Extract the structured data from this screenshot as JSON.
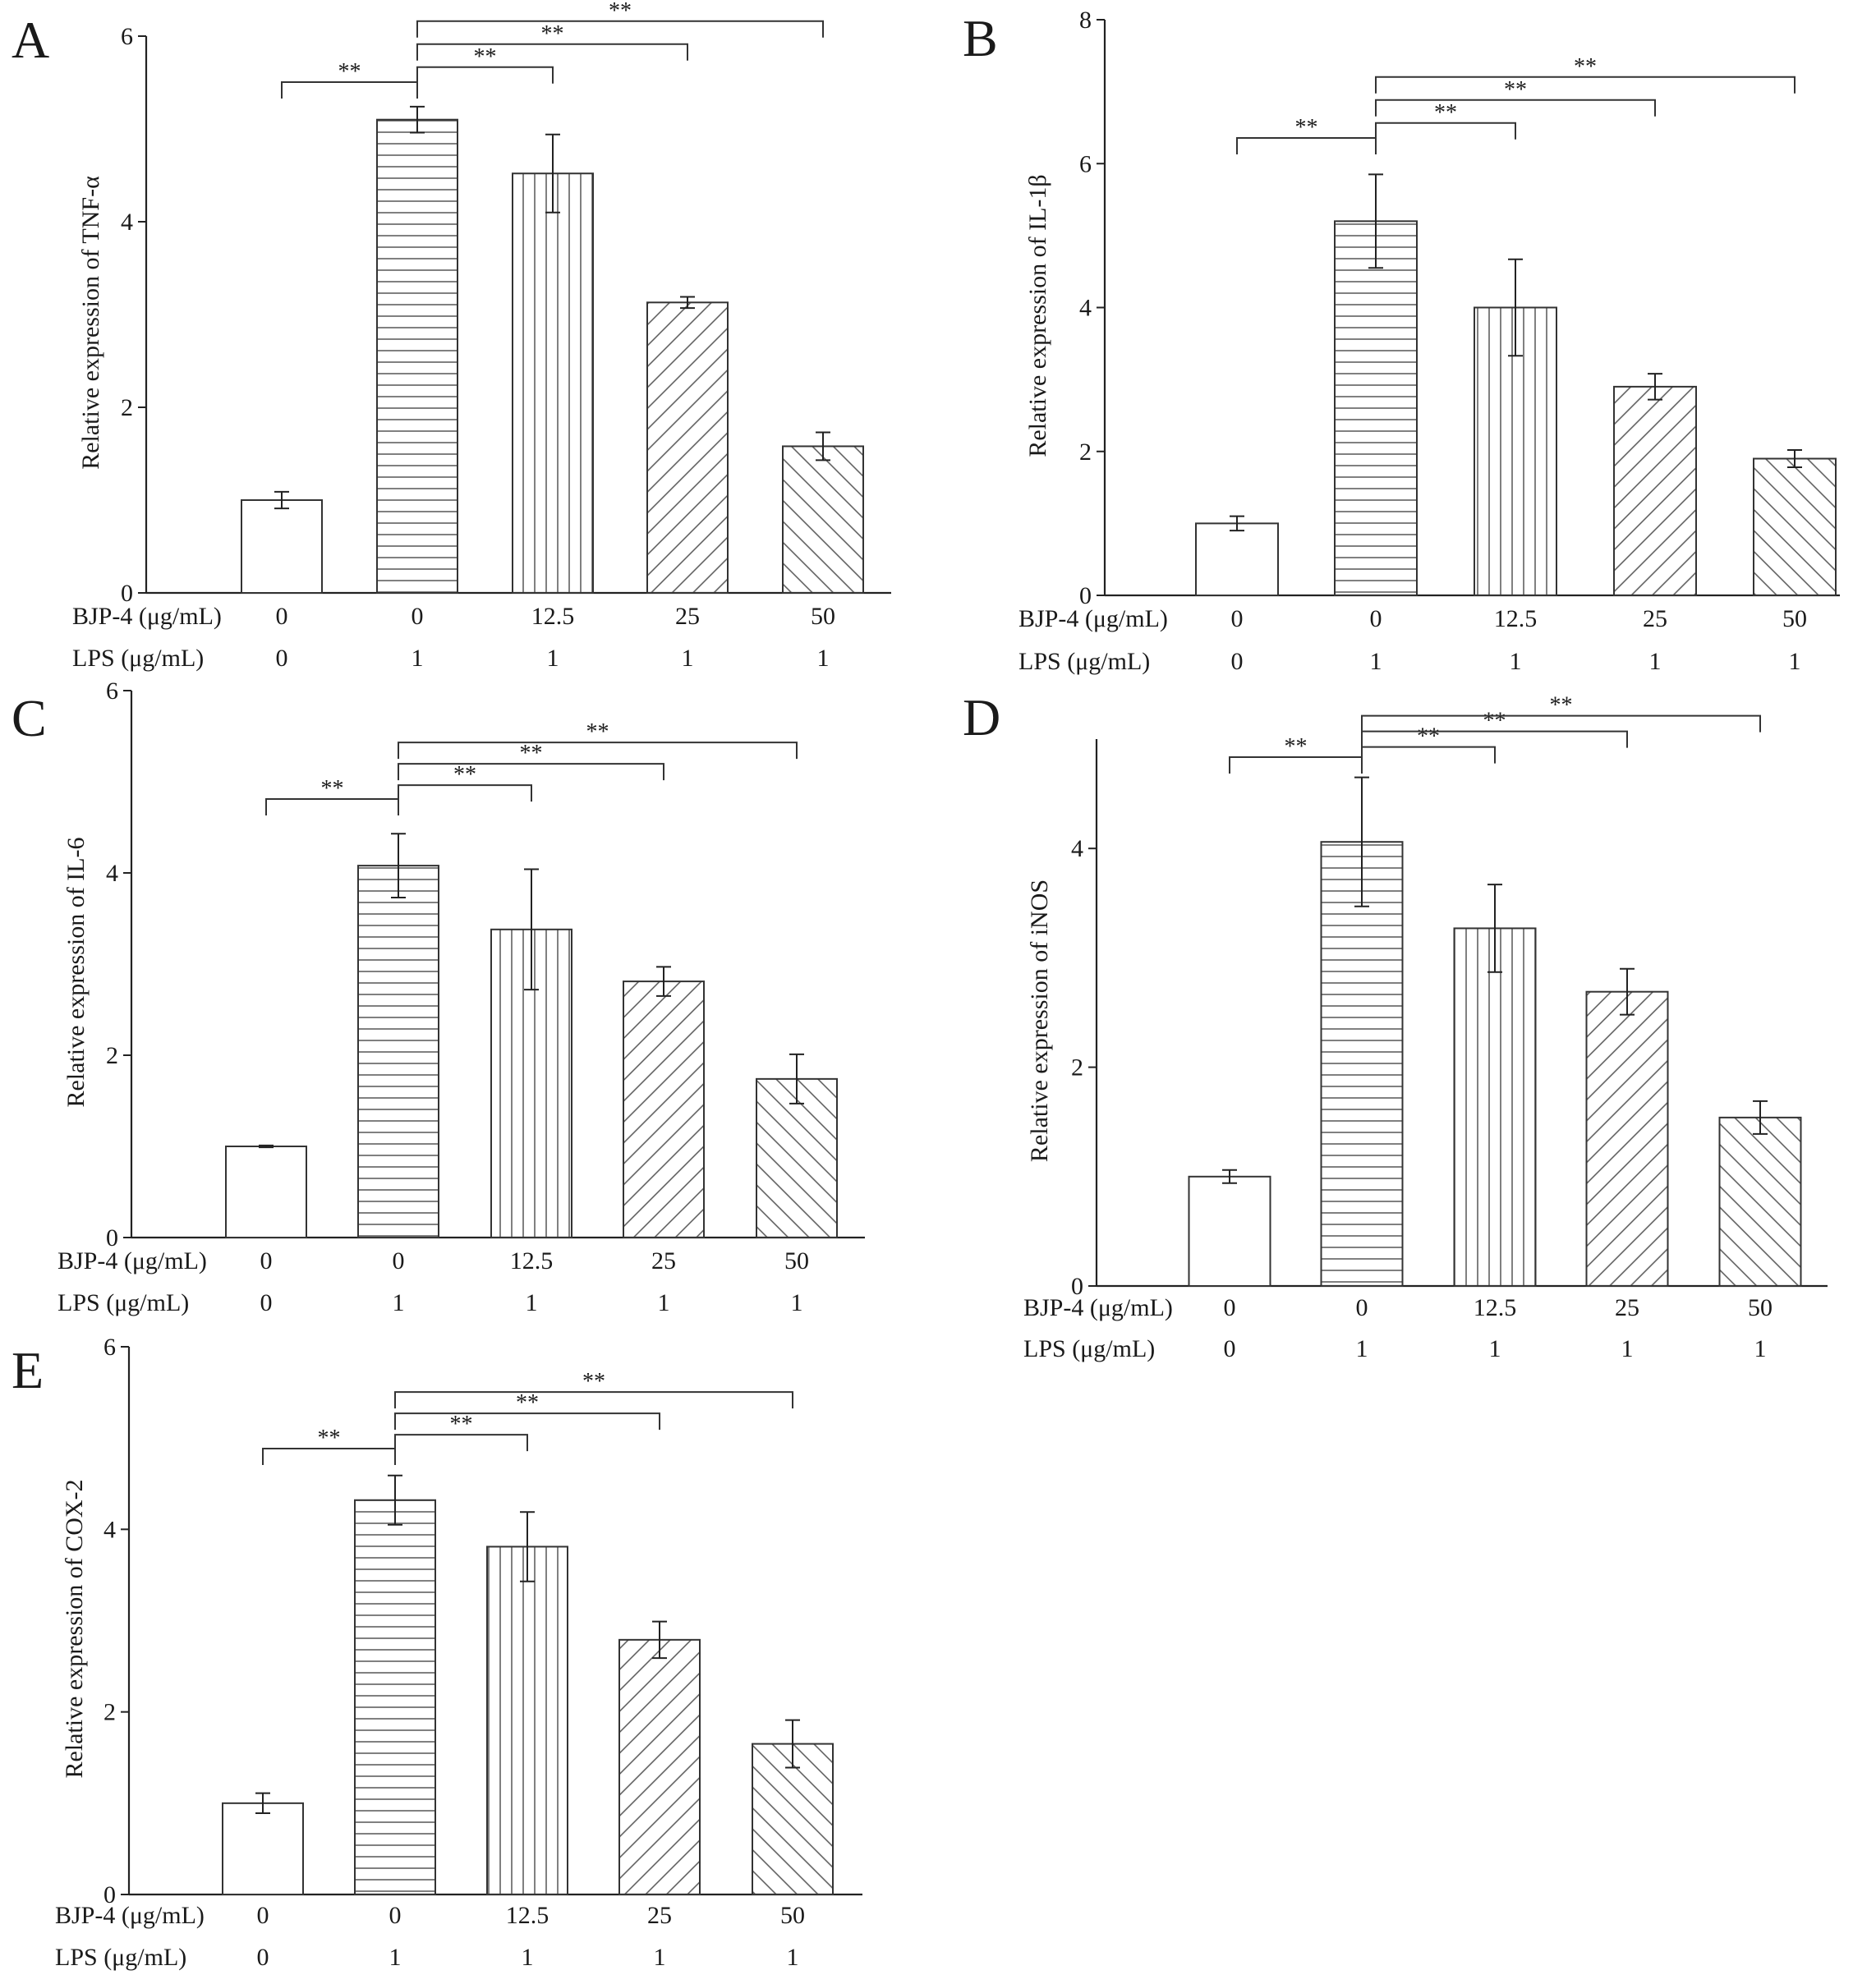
{
  "figure": {
    "row_labels": [
      "BJP-4 (μg/mL)",
      "LPS (μg/mL)"
    ],
    "colors": {
      "ink": "#222222",
      "hatch": "#555555",
      "bar_fill": "#ffffff"
    },
    "significance_marker": "**"
  },
  "chart_data": [
    {
      "id": "A",
      "type": "bar",
      "panel_label": "A",
      "ylabel": "Relative expression of TNF-α",
      "ylim": [
        0,
        6
      ],
      "yticks": [
        "0",
        "2",
        "4",
        "6"
      ],
      "categories": [
        "0/0",
        "0/1",
        "12.5/1",
        "25/1",
        "50/1"
      ],
      "bjp4": [
        "0",
        "0",
        "12.5",
        "25",
        "50"
      ],
      "lps": [
        "0",
        "1",
        "1",
        "1",
        "1"
      ],
      "values": [
        1.0,
        5.1,
        4.52,
        3.13,
        1.58
      ],
      "errors": [
        0.09,
        0.14,
        0.42,
        0.06,
        0.15
      ],
      "patterns": [
        "none",
        "horizontal",
        "vertical",
        "diag-up",
        "diag-down"
      ],
      "brackets": [
        {
          "from": 0,
          "to": 1,
          "label": "**"
        },
        {
          "from": 1,
          "to": 2,
          "label": "**"
        },
        {
          "from": 1,
          "to": 3,
          "label": "**"
        },
        {
          "from": 1,
          "to": 4,
          "label": "**"
        }
      ]
    },
    {
      "id": "B",
      "type": "bar",
      "panel_label": "B",
      "ylabel": "Relative expression of IL-1β",
      "ylim": [
        0,
        8
      ],
      "yticks": [
        "0",
        "2",
        "4",
        "6",
        "8"
      ],
      "categories": [
        "0/0",
        "0/1",
        "12.5/1",
        "25/1",
        "50/1"
      ],
      "bjp4": [
        "0",
        "0",
        "12.5",
        "25",
        "50"
      ],
      "lps": [
        "0",
        "1",
        "1",
        "1",
        "1"
      ],
      "values": [
        1.0,
        5.2,
        4.0,
        2.9,
        1.9
      ],
      "errors": [
        0.1,
        0.65,
        0.67,
        0.18,
        0.12
      ],
      "patterns": [
        "none",
        "horizontal",
        "vertical",
        "diag-up",
        "diag-down"
      ],
      "brackets": [
        {
          "from": 0,
          "to": 1,
          "label": "**"
        },
        {
          "from": 1,
          "to": 2,
          "label": "**"
        },
        {
          "from": 1,
          "to": 3,
          "label": "**"
        },
        {
          "from": 1,
          "to": 4,
          "label": "**"
        }
      ]
    },
    {
      "id": "C",
      "type": "bar",
      "panel_label": "C",
      "ylabel": "Relative expression of IL-6",
      "ylim": [
        0,
        6
      ],
      "yticks": [
        "0",
        "2",
        "4",
        "6"
      ],
      "categories": [
        "0/0",
        "0/1",
        "12.5/1",
        "25/1",
        "50/1"
      ],
      "bjp4": [
        "0",
        "0",
        "12.5",
        "25",
        "50"
      ],
      "lps": [
        "0",
        "1",
        "1",
        "1",
        "1"
      ],
      "values": [
        1.0,
        4.08,
        3.38,
        2.81,
        1.74
      ],
      "errors": [
        0.01,
        0.35,
        0.66,
        0.16,
        0.27
      ],
      "patterns": [
        "none",
        "horizontal",
        "vertical",
        "diag-up",
        "diag-down"
      ],
      "brackets": [
        {
          "from": 0,
          "to": 1,
          "label": "**"
        },
        {
          "from": 1,
          "to": 2,
          "label": "**"
        },
        {
          "from": 1,
          "to": 3,
          "label": "**"
        },
        {
          "from": 1,
          "to": 4,
          "label": "**"
        }
      ]
    },
    {
      "id": "D",
      "type": "bar",
      "panel_label": "D",
      "ylabel": "Relative expression of iNOS",
      "ylim": [
        0,
        5
      ],
      "yticks": [
        "0",
        "2",
        "4"
      ],
      "categories": [
        "0/0",
        "0/1",
        "12.5/1",
        "25/1",
        "50/1"
      ],
      "bjp4": [
        "0",
        "0",
        "12.5",
        "25",
        "50"
      ],
      "lps": [
        "0",
        "1",
        "1",
        "1",
        "1"
      ],
      "values": [
        1.0,
        4.06,
        3.27,
        2.69,
        1.54
      ],
      "errors": [
        0.06,
        0.59,
        0.4,
        0.21,
        0.15
      ],
      "patterns": [
        "none",
        "horizontal",
        "vertical",
        "diag-up",
        "diag-down"
      ],
      "brackets": [
        {
          "from": 0,
          "to": 1,
          "label": "**"
        },
        {
          "from": 1,
          "to": 2,
          "label": "**"
        },
        {
          "from": 1,
          "to": 3,
          "label": "**"
        },
        {
          "from": 1,
          "to": 4,
          "label": "**"
        }
      ]
    },
    {
      "id": "E",
      "type": "bar",
      "panel_label": "E",
      "ylabel": "Relative expression of COX-2",
      "ylim": [
        0,
        6
      ],
      "yticks": [
        "0",
        "2",
        "4",
        "6"
      ],
      "categories": [
        "0/0",
        "0/1",
        "12.5/1",
        "25/1",
        "50/1"
      ],
      "bjp4": [
        "0",
        "0",
        "12.5",
        "25",
        "50"
      ],
      "lps": [
        "0",
        "1",
        "1",
        "1",
        "1"
      ],
      "values": [
        1.0,
        4.32,
        3.81,
        2.79,
        1.65
      ],
      "errors": [
        0.11,
        0.27,
        0.38,
        0.2,
        0.26
      ],
      "patterns": [
        "none",
        "horizontal",
        "vertical",
        "diag-up",
        "diag-down"
      ],
      "brackets": [
        {
          "from": 0,
          "to": 1,
          "label": "**"
        },
        {
          "from": 1,
          "to": 2,
          "label": "**"
        },
        {
          "from": 1,
          "to": 3,
          "label": "**"
        },
        {
          "from": 1,
          "to": 4,
          "label": "**"
        }
      ]
    }
  ]
}
